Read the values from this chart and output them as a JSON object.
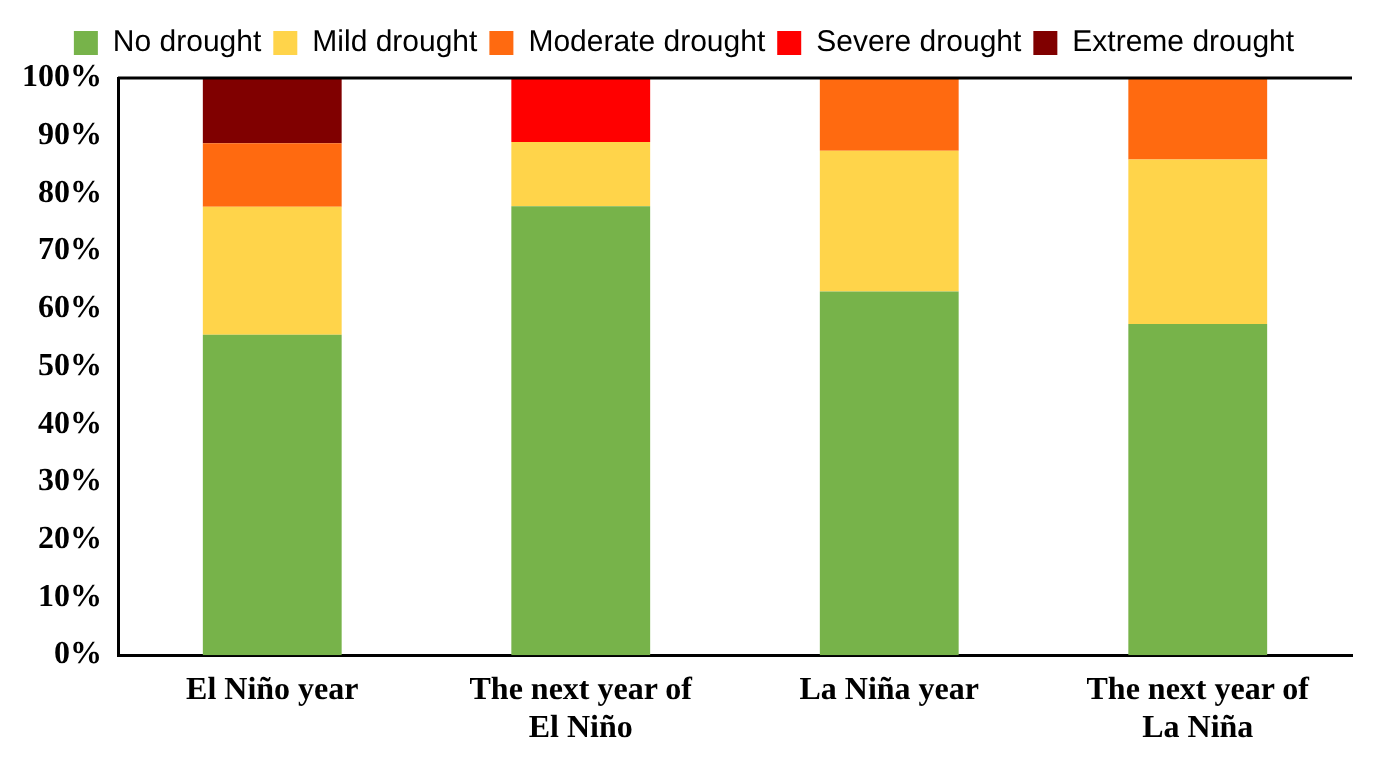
{
  "chart_data": {
    "type": "bar",
    "stacked": true,
    "categories": [
      "El Niño year",
      "The next year of El Niño",
      "La Niña year",
      "The next year of La Niña"
    ],
    "series": [
      {
        "name": "No drought",
        "color": "#77b34a",
        "values": [
          55.5,
          77.8,
          63,
          57.4
        ]
      },
      {
        "name": "Mild drought",
        "color": "#ffd44a",
        "values": [
          22.2,
          11.1,
          24.4,
          28.5
        ]
      },
      {
        "name": "Moderate drought",
        "color": "#ff6a10",
        "values": [
          11,
          0,
          12.6,
          14.1
        ]
      },
      {
        "name": "Severe drought",
        "color": "#ff0000",
        "values": [
          0,
          11.1,
          0,
          0
        ]
      },
      {
        "name": "Extreme drought",
        "color": "#800000",
        "values": [
          11.3,
          0,
          0,
          0
        ]
      }
    ],
    "ylim": [
      0,
      100
    ],
    "yticks": [
      {
        "value": 0,
        "label": "0%"
      },
      {
        "value": 10,
        "label": "10%"
      },
      {
        "value": 20,
        "label": "20%"
      },
      {
        "value": 30,
        "label": "30%"
      },
      {
        "value": 40,
        "label": "40%"
      },
      {
        "value": 50,
        "label": "50%"
      },
      {
        "value": 60,
        "label": "60%"
      },
      {
        "value": 70,
        "label": "70%"
      },
      {
        "value": 80,
        "label": "80%"
      },
      {
        "value": 90,
        "label": "90%"
      },
      {
        "value": 100,
        "label": "100%"
      }
    ],
    "grid": false,
    "legend": "top"
  }
}
